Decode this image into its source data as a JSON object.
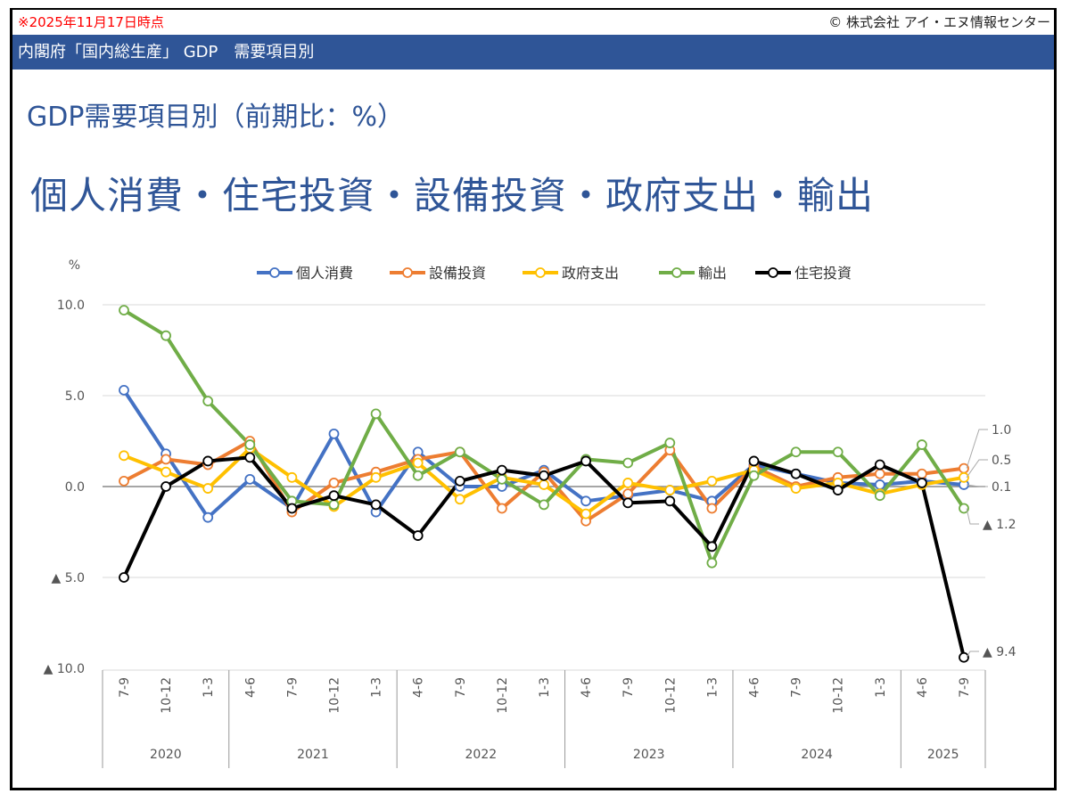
{
  "header": {
    "as_of": "※2025年11月17日時点",
    "copyright": "© 株式会社 アイ・エヌ情報センター",
    "banner": "内閣府「国内総生産」 GDP　需要項目別"
  },
  "titles": {
    "subtitle": "GDP需要項目別（前期比：%）",
    "main": "個人消費・住宅投資・設備投資・政府支出・輸出"
  },
  "chart_data": {
    "type": "line",
    "title": "GDP需要項目別（前期比：%）",
    "ylabel": "%",
    "xlabel": "",
    "ylim": [
      -10,
      10
    ],
    "yticks": [
      10,
      5,
      0,
      -5,
      -10
    ],
    "ytick_labels": [
      "10.0",
      "5.0",
      "0.0",
      "▲ 5.0",
      "▲ 10.0"
    ],
    "grid": true,
    "legend_position": "top",
    "categories": [
      "7-9",
      "10-12",
      "1-3",
      "4-6",
      "7-9",
      "10-12",
      "1-3",
      "4-6",
      "7-9",
      "10-12",
      "1-3",
      "4-6",
      "7-9",
      "10-12",
      "1-3",
      "4-6",
      "7-9",
      "10-12",
      "1-3",
      "4-6",
      "7-9"
    ],
    "year_groups": [
      {
        "label": "2020",
        "count": 3
      },
      {
        "label": "2021",
        "count": 4
      },
      {
        "label": "2022",
        "count": 4
      },
      {
        "label": "2023",
        "count": 4
      },
      {
        "label": "2024",
        "count": 4
      },
      {
        "label": "2025",
        "count": 2
      }
    ],
    "series": [
      {
        "name": "個人消費",
        "color": "#4472c4",
        "values": [
          5.3,
          1.8,
          -1.7,
          0.4,
          -1.2,
          2.9,
          -1.4,
          1.9,
          0.0,
          0.0,
          0.9,
          -0.8,
          -0.5,
          -0.2,
          -0.8,
          1.2,
          0.7,
          0.2,
          0.1,
          0.3,
          0.1
        ]
      },
      {
        "name": "設備投資",
        "color": "#ed7d31",
        "values": [
          0.3,
          1.5,
          1.2,
          2.5,
          -1.4,
          0.2,
          0.8,
          1.5,
          1.9,
          -1.2,
          0.8,
          -1.9,
          -0.4,
          2.0,
          -1.2,
          1.1,
          0.0,
          0.5,
          0.7,
          0.7,
          1.0
        ]
      },
      {
        "name": "政府支出",
        "color": "#ffc000",
        "values": [
          1.7,
          0.8,
          -0.1,
          2.1,
          0.5,
          -1.1,
          0.5,
          1.3,
          -0.7,
          0.5,
          0.1,
          -1.5,
          0.2,
          -0.2,
          0.3,
          0.9,
          -0.1,
          0.2,
          -0.4,
          0.1,
          0.5
        ]
      },
      {
        "name": "輸出",
        "color": "#70ad47",
        "values": [
          9.7,
          8.3,
          4.7,
          2.3,
          -0.8,
          -1.0,
          4.0,
          0.6,
          1.9,
          0.4,
          -1.0,
          1.5,
          1.3,
          2.4,
          -4.2,
          0.6,
          1.9,
          1.9,
          -0.5,
          2.3,
          -1.2
        ]
      },
      {
        "name": "住宅投資",
        "color": "#000000",
        "values": [
          -5.0,
          0.0,
          1.4,
          1.6,
          -1.2,
          -0.5,
          -1.0,
          -2.7,
          0.3,
          0.9,
          0.6,
          1.4,
          -0.9,
          -0.8,
          -3.3,
          1.4,
          0.7,
          -0.2,
          1.2,
          0.2,
          -9.4
        ]
      }
    ],
    "annotations": [
      {
        "series": "設備投資",
        "label": "1.0"
      },
      {
        "series": "政府支出",
        "label": "0.5"
      },
      {
        "series": "個人消費",
        "label": "0.1"
      },
      {
        "series": "輸出",
        "label": "▲ 1.2"
      },
      {
        "series": "住宅投資",
        "label": "▲ 9.4"
      }
    ]
  }
}
